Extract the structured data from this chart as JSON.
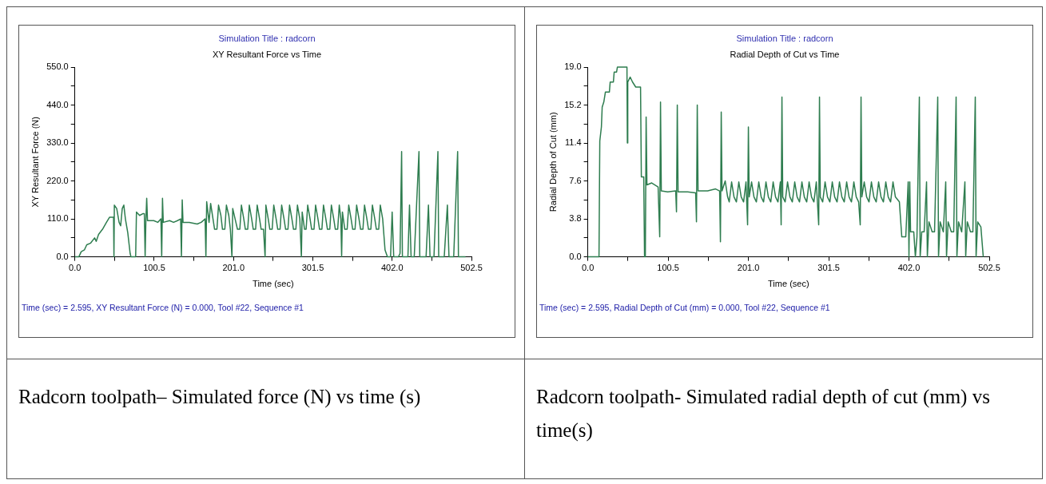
{
  "chart_data": [
    {
      "type": "line",
      "subtitle": "Simulation Title : radcorn",
      "title": "XY Resultant Force  vs Time",
      "xlabel": "Time (sec)",
      "ylabel": "XY Resultant Force (N)",
      "marker": "none",
      "legend": false,
      "grid": false,
      "xlim": [
        0,
        502.5
      ],
      "ylim": [
        0,
        550
      ],
      "xticks": [
        {
          "value": 0,
          "label": "0.0"
        },
        {
          "value": 50.25,
          "label": null
        },
        {
          "value": 100.5,
          "label": "100.5"
        },
        {
          "value": 150.75,
          "label": null
        },
        {
          "value": 201,
          "label": "201.0"
        },
        {
          "value": 251.25,
          "label": null
        },
        {
          "value": 301.5,
          "label": "301.5"
        },
        {
          "value": 351.75,
          "label": null
        },
        {
          "value": 402,
          "label": "402.0"
        },
        {
          "value": 452.25,
          "label": null
        },
        {
          "value": 502.5,
          "label": "502.5"
        }
      ],
      "yticks": [
        {
          "value": 0,
          "label": "0.0"
        },
        {
          "value": 55,
          "label": null
        },
        {
          "value": 110,
          "label": "110.0"
        },
        {
          "value": 165,
          "label": null
        },
        {
          "value": 220,
          "label": "220.0"
        },
        {
          "value": 275,
          "label": null
        },
        {
          "value": 330,
          "label": "330.0"
        },
        {
          "value": 385,
          "label": null
        },
        {
          "value": 440,
          "label": "440.0"
        },
        {
          "value": 495,
          "label": null
        },
        {
          "value": 550,
          "label": "550.0"
        }
      ],
      "annotations": [
        "Time (sec) = 2.595,  XY Resultant Force (N) = 0.000,  Tool #22,  Sequence #1",
        "Radcorn toolpath– Simulated force (N) vs time (s)"
      ],
      "series": [
        {
          "color": "#2e7d4f",
          "x": [
            0,
            5,
            8,
            12,
            15,
            20,
            25,
            27,
            30,
            35,
            40,
            44,
            49,
            49.5,
            50,
            53,
            56,
            58,
            60,
            62,
            64,
            67,
            70,
            71,
            77,
            78,
            82,
            86,
            88,
            89,
            90,
            91,
            92,
            100,
            105,
            109,
            110,
            111,
            112,
            120,
            125,
            130,
            134,
            135,
            136,
            137,
            145,
            155,
            160,
            165,
            166,
            167,
            170,
            172,
            175,
            177,
            180,
            182,
            185,
            187,
            190,
            192,
            195,
            197,
            199,
            200,
            203,
            206,
            209,
            211,
            214,
            216,
            219,
            221,
            224,
            226,
            229,
            231,
            234,
            236,
            239,
            241,
            242,
            245,
            247,
            250,
            252,
            255,
            257,
            260,
            262,
            265,
            267,
            270,
            272,
            275,
            277,
            280,
            282,
            285,
            287,
            288,
            291,
            293,
            295,
            298,
            300,
            303,
            305,
            308,
            310,
            313,
            315,
            318,
            320,
            323,
            325,
            328,
            330,
            333,
            335,
            337,
            338,
            339,
            342,
            345,
            347,
            350,
            352,
            355,
            357,
            360,
            362,
            365,
            367,
            370,
            372,
            375,
            377,
            380,
            382,
            385,
            387,
            390,
            393,
            396,
            400,
            402,
            404,
            410,
            412,
            414,
            415,
            422,
            424,
            426,
            430,
            436,
            437,
            445,
            448,
            450,
            455,
            460,
            461,
            468,
            472,
            474,
            480,
            485,
            486,
            495
          ],
          "values": [
            0,
            0,
            15,
            20,
            35,
            40,
            55,
            45,
            65,
            80,
            100,
            115,
            115,
            0,
            150,
            140,
            100,
            90,
            140,
            150,
            110,
            70,
            10,
            0,
            0,
            130,
            120,
            125,
            125,
            0,
            110,
            170,
            105,
            105,
            100,
            110,
            0,
            170,
            100,
            105,
            100,
            105,
            110,
            0,
            165,
            100,
            100,
            95,
            100,
            110,
            0,
            160,
            100,
            155,
            110,
            80,
            80,
            150,
            120,
            80,
            80,
            150,
            120,
            80,
            0,
            140,
            110,
            80,
            80,
            150,
            110,
            80,
            80,
            150,
            110,
            80,
            80,
            150,
            110,
            80,
            80,
            0,
            150,
            110,
            80,
            80,
            150,
            110,
            80,
            80,
            150,
            110,
            80,
            80,
            150,
            110,
            80,
            80,
            150,
            110,
            0,
            130,
            80,
            80,
            150,
            110,
            80,
            80,
            150,
            110,
            80,
            80,
            150,
            110,
            80,
            80,
            150,
            110,
            80,
            80,
            150,
            110,
            0,
            130,
            80,
            80,
            150,
            110,
            80,
            80,
            150,
            110,
            80,
            80,
            150,
            110,
            80,
            80,
            150,
            110,
            80,
            80,
            150,
            110,
            20,
            0,
            0,
            130,
            0,
            0,
            10,
            305,
            0,
            0,
            150,
            0,
            0,
            305,
            0,
            0,
            150,
            0,
            0,
            305,
            0,
            0,
            150,
            0,
            0,
            305,
            0,
            0
          ]
        }
      ]
    },
    {
      "type": "line",
      "subtitle": "Simulation Title : radcorn",
      "title": "Radial Depth of Cut  vs Time",
      "xlabel": "Time (sec)",
      "ylabel": "Radial Depth of Cut (mm)",
      "marker": "none",
      "legend": false,
      "grid": false,
      "xlim": [
        0,
        502.5
      ],
      "ylim": [
        0,
        19
      ],
      "xticks": [
        {
          "value": 0,
          "label": "0.0"
        },
        {
          "value": 50.25,
          "label": null
        },
        {
          "value": 100.5,
          "label": "100.5"
        },
        {
          "value": 150.75,
          "label": null
        },
        {
          "value": 201,
          "label": "201.0"
        },
        {
          "value": 251.25,
          "label": null
        },
        {
          "value": 301.5,
          "label": "301.5"
        },
        {
          "value": 351.75,
          "label": null
        },
        {
          "value": 402,
          "label": "402.0"
        },
        {
          "value": 452.25,
          "label": null
        },
        {
          "value": 502.5,
          "label": "502.5"
        }
      ],
      "yticks": [
        {
          "value": 0,
          "label": "0.0"
        },
        {
          "value": 1.9,
          "label": null
        },
        {
          "value": 3.8,
          "label": "3.8"
        },
        {
          "value": 5.7,
          "label": null
        },
        {
          "value": 7.6,
          "label": "7.6"
        },
        {
          "value": 9.5,
          "label": null
        },
        {
          "value": 11.4,
          "label": "11.4"
        },
        {
          "value": 13.3,
          "label": null
        },
        {
          "value": 15.2,
          "label": "15.2"
        },
        {
          "value": 17.1,
          "label": null
        },
        {
          "value": 19,
          "label": "19.0"
        }
      ],
      "annotations": [
        "Time (sec) = 2.595,  Radial Depth of Cut (mm) = 0.000,  Tool #22,  Sequence #1",
        "Radcorn toolpath- Simulated radial depth of cut  (mm) vs time(s)"
      ],
      "series": [
        {
          "color": "#2e7d4f",
          "x": [
            0,
            14,
            15,
            17,
            18,
            20,
            22,
            27,
            28,
            32,
            33,
            36,
            37,
            49,
            49.5,
            50,
            53,
            56,
            60,
            66,
            67,
            70,
            71,
            72,
            73,
            74,
            80,
            88,
            90,
            91,
            92,
            100,
            110,
            111,
            112,
            113,
            125,
            135,
            136,
            137,
            138,
            150,
            160,
            165,
            166,
            167,
            168,
            172,
            175,
            177,
            180,
            183,
            186,
            189,
            192,
            195,
            198,
            200,
            201,
            202,
            205,
            208,
            211,
            214,
            217,
            220,
            223,
            226,
            229,
            232,
            235,
            238,
            241,
            242,
            243,
            244,
            247,
            250,
            253,
            256,
            259,
            262,
            265,
            268,
            271,
            274,
            277,
            280,
            283,
            286,
            289,
            290,
            291,
            294,
            297,
            300,
            303,
            306,
            309,
            312,
            315,
            318,
            321,
            324,
            327,
            330,
            333,
            336,
            339,
            341,
            342,
            343,
            346,
            349,
            352,
            355,
            358,
            361,
            364,
            367,
            370,
            373,
            376,
            379,
            382,
            385,
            390,
            393,
            398,
            401,
            402,
            403,
            404,
            408,
            410,
            412,
            415,
            416,
            418,
            421,
            424,
            425,
            427,
            431,
            434,
            438,
            439,
            441,
            445,
            448,
            449,
            451,
            455,
            458,
            461,
            462,
            464,
            468,
            472,
            473,
            475,
            479,
            482,
            485,
            486,
            488,
            492,
            495
          ],
          "values": [
            0,
            0,
            11.6,
            13,
            15,
            15.5,
            16.5,
            16.5,
            17.5,
            17.5,
            18.5,
            18.5,
            19,
            19,
            11.4,
            17.5,
            18,
            17.5,
            17,
            17,
            8,
            8,
            0,
            0,
            14,
            7.2,
            7.4,
            7,
            2,
            15.5,
            6.6,
            6.5,
            6.6,
            4.5,
            15.2,
            6.5,
            6.5,
            6.4,
            3.5,
            15.2,
            6.6,
            6.6,
            6.8,
            6.6,
            1.5,
            14.5,
            6.6,
            7.6,
            6,
            5.5,
            7.5,
            6,
            5.5,
            7.5,
            6,
            5.5,
            7.5,
            3.2,
            13,
            6,
            7.5,
            6,
            5.5,
            7.5,
            6,
            5.5,
            7.5,
            6,
            5.5,
            7.5,
            6,
            5.5,
            7.5,
            3.2,
            16,
            6,
            5.5,
            7.5,
            6,
            5.5,
            7.5,
            6,
            5.5,
            7.5,
            6,
            5.5,
            7.5,
            6,
            5.5,
            7.5,
            3.2,
            16,
            6,
            5.5,
            7.5,
            6,
            5.5,
            7.5,
            6,
            5.5,
            7.5,
            6,
            5.5,
            7.5,
            6,
            5.5,
            7.5,
            6,
            5.5,
            3.2,
            16,
            6,
            7.5,
            6,
            5.5,
            7.5,
            6,
            5.5,
            7.5,
            6,
            5.5,
            7.5,
            6,
            5.5,
            7.5,
            6,
            5.5,
            2,
            2,
            7.5,
            0,
            7.5,
            2.5,
            2.5,
            0,
            2,
            16,
            0,
            2.5,
            2.5,
            7.5,
            0,
            3.5,
            2.5,
            2.5,
            16,
            0,
            3.5,
            2.5,
            7.5,
            0,
            3.5,
            2.5,
            2.5,
            16,
            0,
            3.5,
            2.5,
            7.5,
            0,
            3.5,
            2.5,
            2.5,
            16,
            0,
            3.5,
            3,
            0
          ]
        }
      ]
    }
  ]
}
